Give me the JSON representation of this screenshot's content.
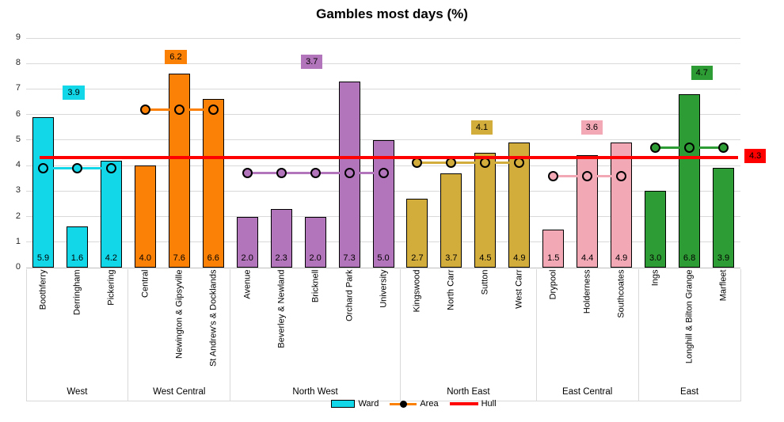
{
  "title": "Gambles most days (%)",
  "chart_data": {
    "type": "bar",
    "title": "Gambles most days (%)",
    "xlabel": "",
    "ylabel": "",
    "ylim": [
      0,
      9
    ],
    "yticks": [
      0,
      1,
      2,
      3,
      4,
      5,
      6,
      7,
      8,
      9
    ],
    "grid": true,
    "legend_position": "bottom",
    "hull_value": 4.3,
    "hull_color": "#FE0000",
    "series_labels": {
      "ward": "Ward",
      "area": "Area",
      "hull": "Hull"
    },
    "groups": [
      {
        "name": "West",
        "color": "#12D7E8",
        "area_value": 3.9,
        "categories": [
          "Boothferry",
          "Derringham",
          "Pickering"
        ],
        "values": [
          5.9,
          1.6,
          4.2
        ]
      },
      {
        "name": "West Central",
        "color": "#FB8006",
        "area_value": 6.2,
        "categories": [
          "Central",
          "Newington & Gipsyville",
          "St Andrew's & Docklands"
        ],
        "values": [
          4.0,
          7.6,
          6.6
        ]
      },
      {
        "name": "North West",
        "color": "#B274BA",
        "area_value": 3.7,
        "categories": [
          "Avenue",
          "Beverley & Newland",
          "Bricknell",
          "Orchard Park",
          "University"
        ],
        "values": [
          2.0,
          2.3,
          2.0,
          7.3,
          5.0
        ]
      },
      {
        "name": "North East",
        "color": "#D2AD3B",
        "area_value": 4.1,
        "categories": [
          "Kingswood",
          "North Carr",
          "Sutton",
          "West Carr"
        ],
        "values": [
          2.7,
          3.7,
          4.5,
          4.9
        ]
      },
      {
        "name": "East Central",
        "color": "#F3A8B6",
        "area_value": 3.6,
        "categories": [
          "Drypool",
          "Holderness",
          "Southcoates"
        ],
        "values": [
          1.5,
          4.4,
          4.9
        ]
      },
      {
        "name": "East",
        "color": "#2E9C34",
        "area_value": 4.7,
        "categories": [
          "Ings",
          "Longhill & Bilton Grange",
          "Marfleet"
        ],
        "values": [
          3.0,
          6.8,
          3.9
        ]
      }
    ]
  }
}
